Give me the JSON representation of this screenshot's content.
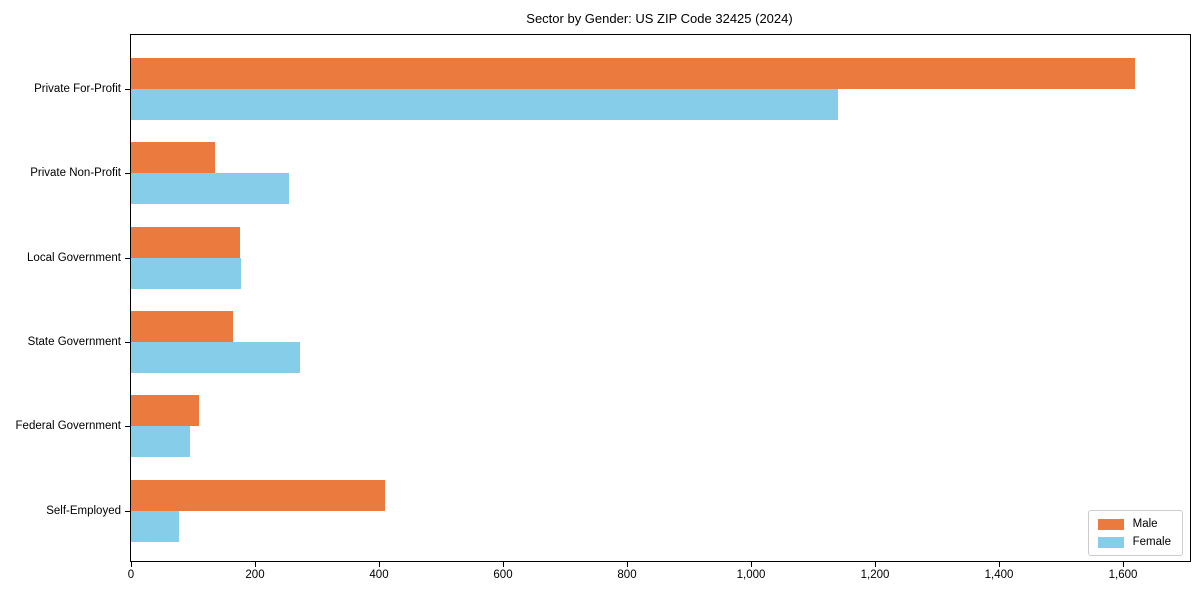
{
  "chart_data": {
    "type": "bar",
    "orientation": "horizontal",
    "title": "Sector by Gender: US ZIP Code 32425 (2024)",
    "categories": [
      "Private For-Profit",
      "Private Non-Profit",
      "Local Government",
      "State Government",
      "Federal Government",
      "Self-Employed"
    ],
    "series": [
      {
        "name": "Male",
        "color": "#ea7a3e",
        "values": [
          1620,
          135,
          175,
          165,
          110,
          410
        ]
      },
      {
        "name": "Female",
        "color": "#86cde9",
        "values": [
          1140,
          255,
          178,
          272,
          95,
          77
        ]
      }
    ],
    "x_tick_values": [
      0,
      200,
      400,
      600,
      800,
      1000,
      1200,
      1400,
      1600
    ],
    "x_tick_labels": [
      "0",
      "200",
      "400",
      "600",
      "800",
      "1,000",
      "1,200",
      "1,400",
      "1,600"
    ],
    "xlim": [
      0,
      1708
    ],
    "xlabel": "",
    "ylabel": "",
    "grid": false,
    "legend": {
      "position": "lower right"
    }
  }
}
